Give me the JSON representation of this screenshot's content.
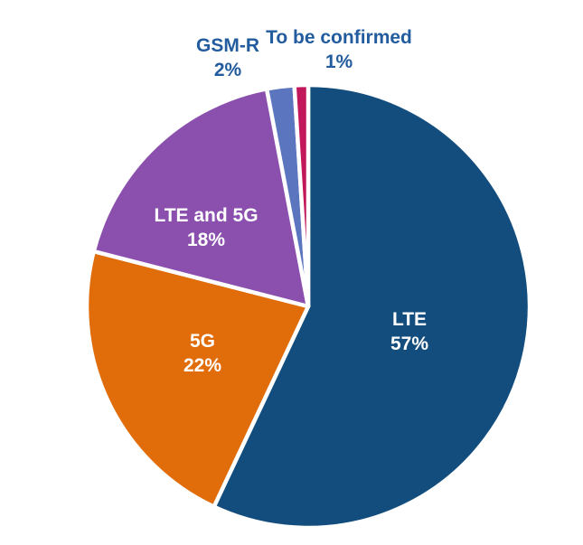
{
  "chart_data": {
    "type": "pie",
    "title": "",
    "start_angle_deg": 0,
    "direction": "clockwise",
    "legend": "none",
    "slices": [
      {
        "label": "LTE",
        "value": 57,
        "pct_label": "57%",
        "color": "#134D7D",
        "label_placement": "inside"
      },
      {
        "label": "5G",
        "value": 22,
        "pct_label": "22%",
        "color": "#E16C0A",
        "label_placement": "inside"
      },
      {
        "label": "LTE and 5G",
        "value": 18,
        "pct_label": "18%",
        "color": "#8B50AE",
        "label_placement": "inside"
      },
      {
        "label": "GSM-R",
        "value": 2,
        "pct_label": "2%",
        "color": "#5B75BF",
        "label_placement": "outside"
      },
      {
        "label": "To be confirmed",
        "value": 1,
        "pct_label": "1%",
        "color": "#C2185B",
        "label_placement": "outside"
      }
    ],
    "inside_label_color": "#FFFFFF",
    "outside_label_color": "#235C9E",
    "separator_color": "#FFFFFF"
  }
}
